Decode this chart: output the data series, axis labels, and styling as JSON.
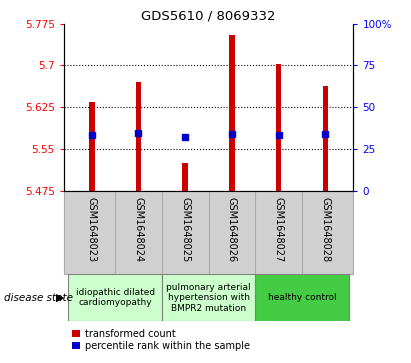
{
  "title": "GDS5610 / 8069332",
  "samples": [
    "GSM1648023",
    "GSM1648024",
    "GSM1648025",
    "GSM1648026",
    "GSM1648027",
    "GSM1648028"
  ],
  "bar_values": [
    5.634,
    5.67,
    5.524,
    5.755,
    5.703,
    5.663
  ],
  "percentile_values": [
    5.575,
    5.578,
    5.572,
    5.577,
    5.575,
    5.576
  ],
  "ymin": 5.475,
  "ymax": 5.775,
  "yticks": [
    5.475,
    5.55,
    5.625,
    5.7,
    5.775
  ],
  "ytick_labels": [
    "5.475",
    "5.55",
    "5.625",
    "5.7",
    "5.775"
  ],
  "right_yticks": [
    0,
    25,
    50,
    75,
    100
  ],
  "right_ytick_labels": [
    "0",
    "25",
    "50",
    "75",
    "100%"
  ],
  "bar_color": "#cc0000",
  "percentile_color": "#0000cc",
  "group_colors": [
    "#ccffcc",
    "#ccffcc",
    "#44cc44"
  ],
  "group_ranges": [
    [
      0,
      1
    ],
    [
      2,
      3
    ],
    [
      4,
      5
    ]
  ],
  "group_labels": [
    "idiopathic dilated\ncardiomyopathy",
    "pulmonary arterial\nhypertension with\nBMPR2 mutation",
    "healthy control"
  ],
  "legend_red": "transformed count",
  "legend_blue": "percentile rank within the sample",
  "disease_state_label": "disease state",
  "bar_width": 0.12,
  "label_bg": "#d0d0d0",
  "label_border": "#aaaaaa"
}
